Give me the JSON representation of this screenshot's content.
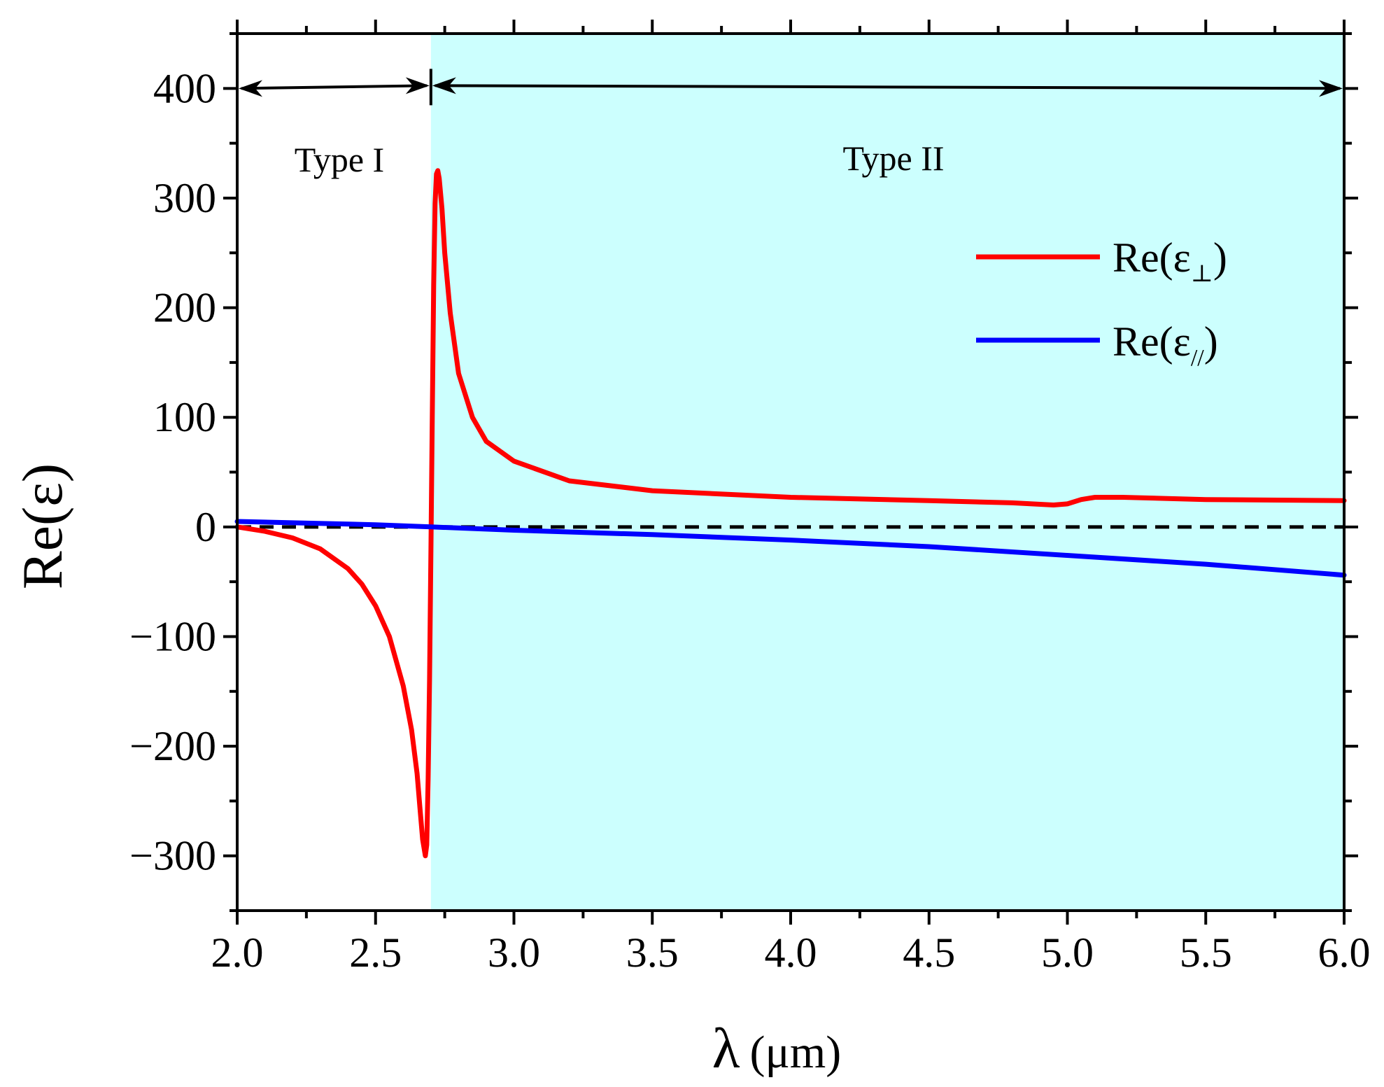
{
  "chart_data": {
    "type": "line",
    "title": "",
    "xlabel": "λ",
    "xlabel_unit": "(μm)",
    "ylabel": "Re(ε)",
    "xlim": [
      2.0,
      6.0
    ],
    "ylim": [
      -350,
      450
    ],
    "x_ticks": [
      2.0,
      2.5,
      3.0,
      3.5,
      4.0,
      4.5,
      5.0,
      5.5,
      6.0
    ],
    "x_tick_labels": [
      "2.0",
      "2.5",
      "3.0",
      "3.5",
      "4.0",
      "4.5",
      "5.0",
      "5.5",
      "6.0"
    ],
    "y_ticks": [
      -300,
      -200,
      -100,
      0,
      100,
      200,
      300,
      400
    ],
    "y_tick_labels": [
      "−300",
      "−200",
      "−100",
      "0",
      "100",
      "200",
      "300",
      "400"
    ],
    "grid": false,
    "legend_position": "upper-right",
    "regions": [
      {
        "label": "Type I",
        "x_start": 2.0,
        "x_end": 2.7,
        "fill": "#ffffff"
      },
      {
        "label": "Type II",
        "x_start": 2.7,
        "x_end": 6.0,
        "fill": "#ccfffe"
      }
    ],
    "region_boundary": 2.7,
    "zero_line": {
      "y": 0,
      "style": "dashed",
      "color": "#000000"
    },
    "series": [
      {
        "name": "Re(ε⊥)",
        "legend_main": "Re(ε",
        "legend_sub": "⊥",
        "legend_close": ")",
        "color": "#ff0000",
        "points": [
          [
            2.0,
            0
          ],
          [
            2.1,
            -4
          ],
          [
            2.2,
            -10
          ],
          [
            2.3,
            -20
          ],
          [
            2.4,
            -38
          ],
          [
            2.45,
            -52
          ],
          [
            2.5,
            -72
          ],
          [
            2.55,
            -100
          ],
          [
            2.6,
            -145
          ],
          [
            2.63,
            -185
          ],
          [
            2.65,
            -225
          ],
          [
            2.66,
            -255
          ],
          [
            2.67,
            -285
          ],
          [
            2.68,
            -300
          ],
          [
            2.685,
            -290
          ],
          [
            2.69,
            -230
          ],
          [
            2.695,
            -140
          ],
          [
            2.7,
            -20
          ],
          [
            2.705,
            100
          ],
          [
            2.71,
            220
          ],
          [
            2.715,
            295
          ],
          [
            2.72,
            322
          ],
          [
            2.725,
            325
          ],
          [
            2.73,
            318
          ],
          [
            2.74,
            290
          ],
          [
            2.75,
            250
          ],
          [
            2.77,
            195
          ],
          [
            2.8,
            140
          ],
          [
            2.85,
            100
          ],
          [
            2.9,
            78
          ],
          [
            3.0,
            60
          ],
          [
            3.2,
            42
          ],
          [
            3.5,
            33
          ],
          [
            4.0,
            27
          ],
          [
            4.5,
            24
          ],
          [
            4.8,
            22
          ],
          [
            4.95,
            20
          ],
          [
            5.0,
            21
          ],
          [
            5.05,
            25
          ],
          [
            5.1,
            27
          ],
          [
            5.2,
            27
          ],
          [
            5.5,
            25
          ],
          [
            6.0,
            24
          ]
        ]
      },
      {
        "name": "Re(ε//)",
        "legend_main": "Re(ε",
        "legend_sub": "//",
        "legend_close": ")",
        "color": "#0000ff",
        "points": [
          [
            2.0,
            5
          ],
          [
            2.5,
            2
          ],
          [
            2.7,
            0
          ],
          [
            3.0,
            -3
          ],
          [
            3.5,
            -7
          ],
          [
            4.0,
            -12
          ],
          [
            4.5,
            -18
          ],
          [
            5.0,
            -26
          ],
          [
            5.5,
            -34
          ],
          [
            6.0,
            -44
          ]
        ]
      }
    ]
  }
}
